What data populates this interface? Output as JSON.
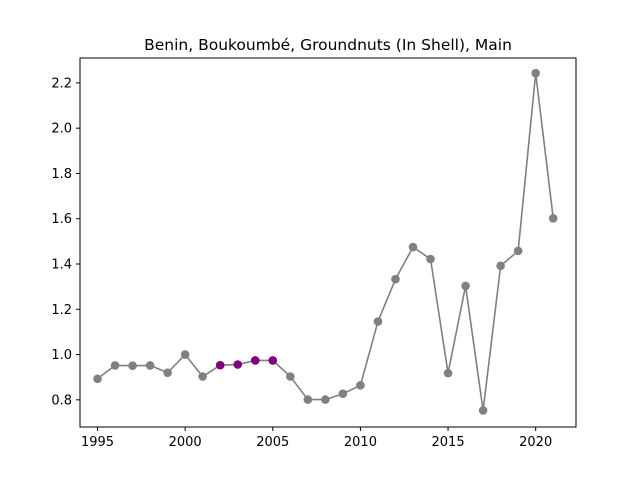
{
  "chart_data": {
    "type": "line",
    "title": "Benin, Boukoumbé, Groundnuts (In Shell), Main",
    "xlabel": "",
    "ylabel": "",
    "xlim": [
      1994.0,
      2022.3
    ],
    "ylim": [
      0.68,
      2.31
    ],
    "xticks": [
      1995,
      2000,
      2005,
      2010,
      2015,
      2020
    ],
    "yticks": [
      0.8,
      1.0,
      1.2,
      1.4,
      1.6,
      1.8,
      2.0,
      2.2
    ],
    "ytick_labels": [
      "0.8",
      "1.0",
      "1.2",
      "1.4",
      "1.6",
      "1.8",
      "2.0",
      "2.2"
    ],
    "grid": false,
    "line_color": "#808080",
    "marker_color": "#808080",
    "highlight_color": "#800080",
    "x": [
      1995,
      1996,
      1997,
      1998,
      1999,
      2000,
      2001,
      2002,
      2003,
      2004,
      2005,
      2006,
      2007,
      2008,
      2009,
      2010,
      2011,
      2012,
      2013,
      2014,
      2015,
      2016,
      2017,
      2018,
      2019,
      2020,
      2021
    ],
    "y": [
      0.893,
      0.952,
      0.951,
      0.952,
      0.92,
      1.0,
      0.903,
      0.953,
      0.956,
      0.974,
      0.974,
      0.903,
      0.801,
      0.801,
      0.827,
      0.864,
      1.146,
      1.333,
      1.475,
      1.422,
      0.918,
      1.303,
      0.753,
      1.392,
      1.458,
      2.243,
      1.602
    ],
    "highlighted_x": [
      2002,
      2003,
      2004,
      2005
    ]
  }
}
